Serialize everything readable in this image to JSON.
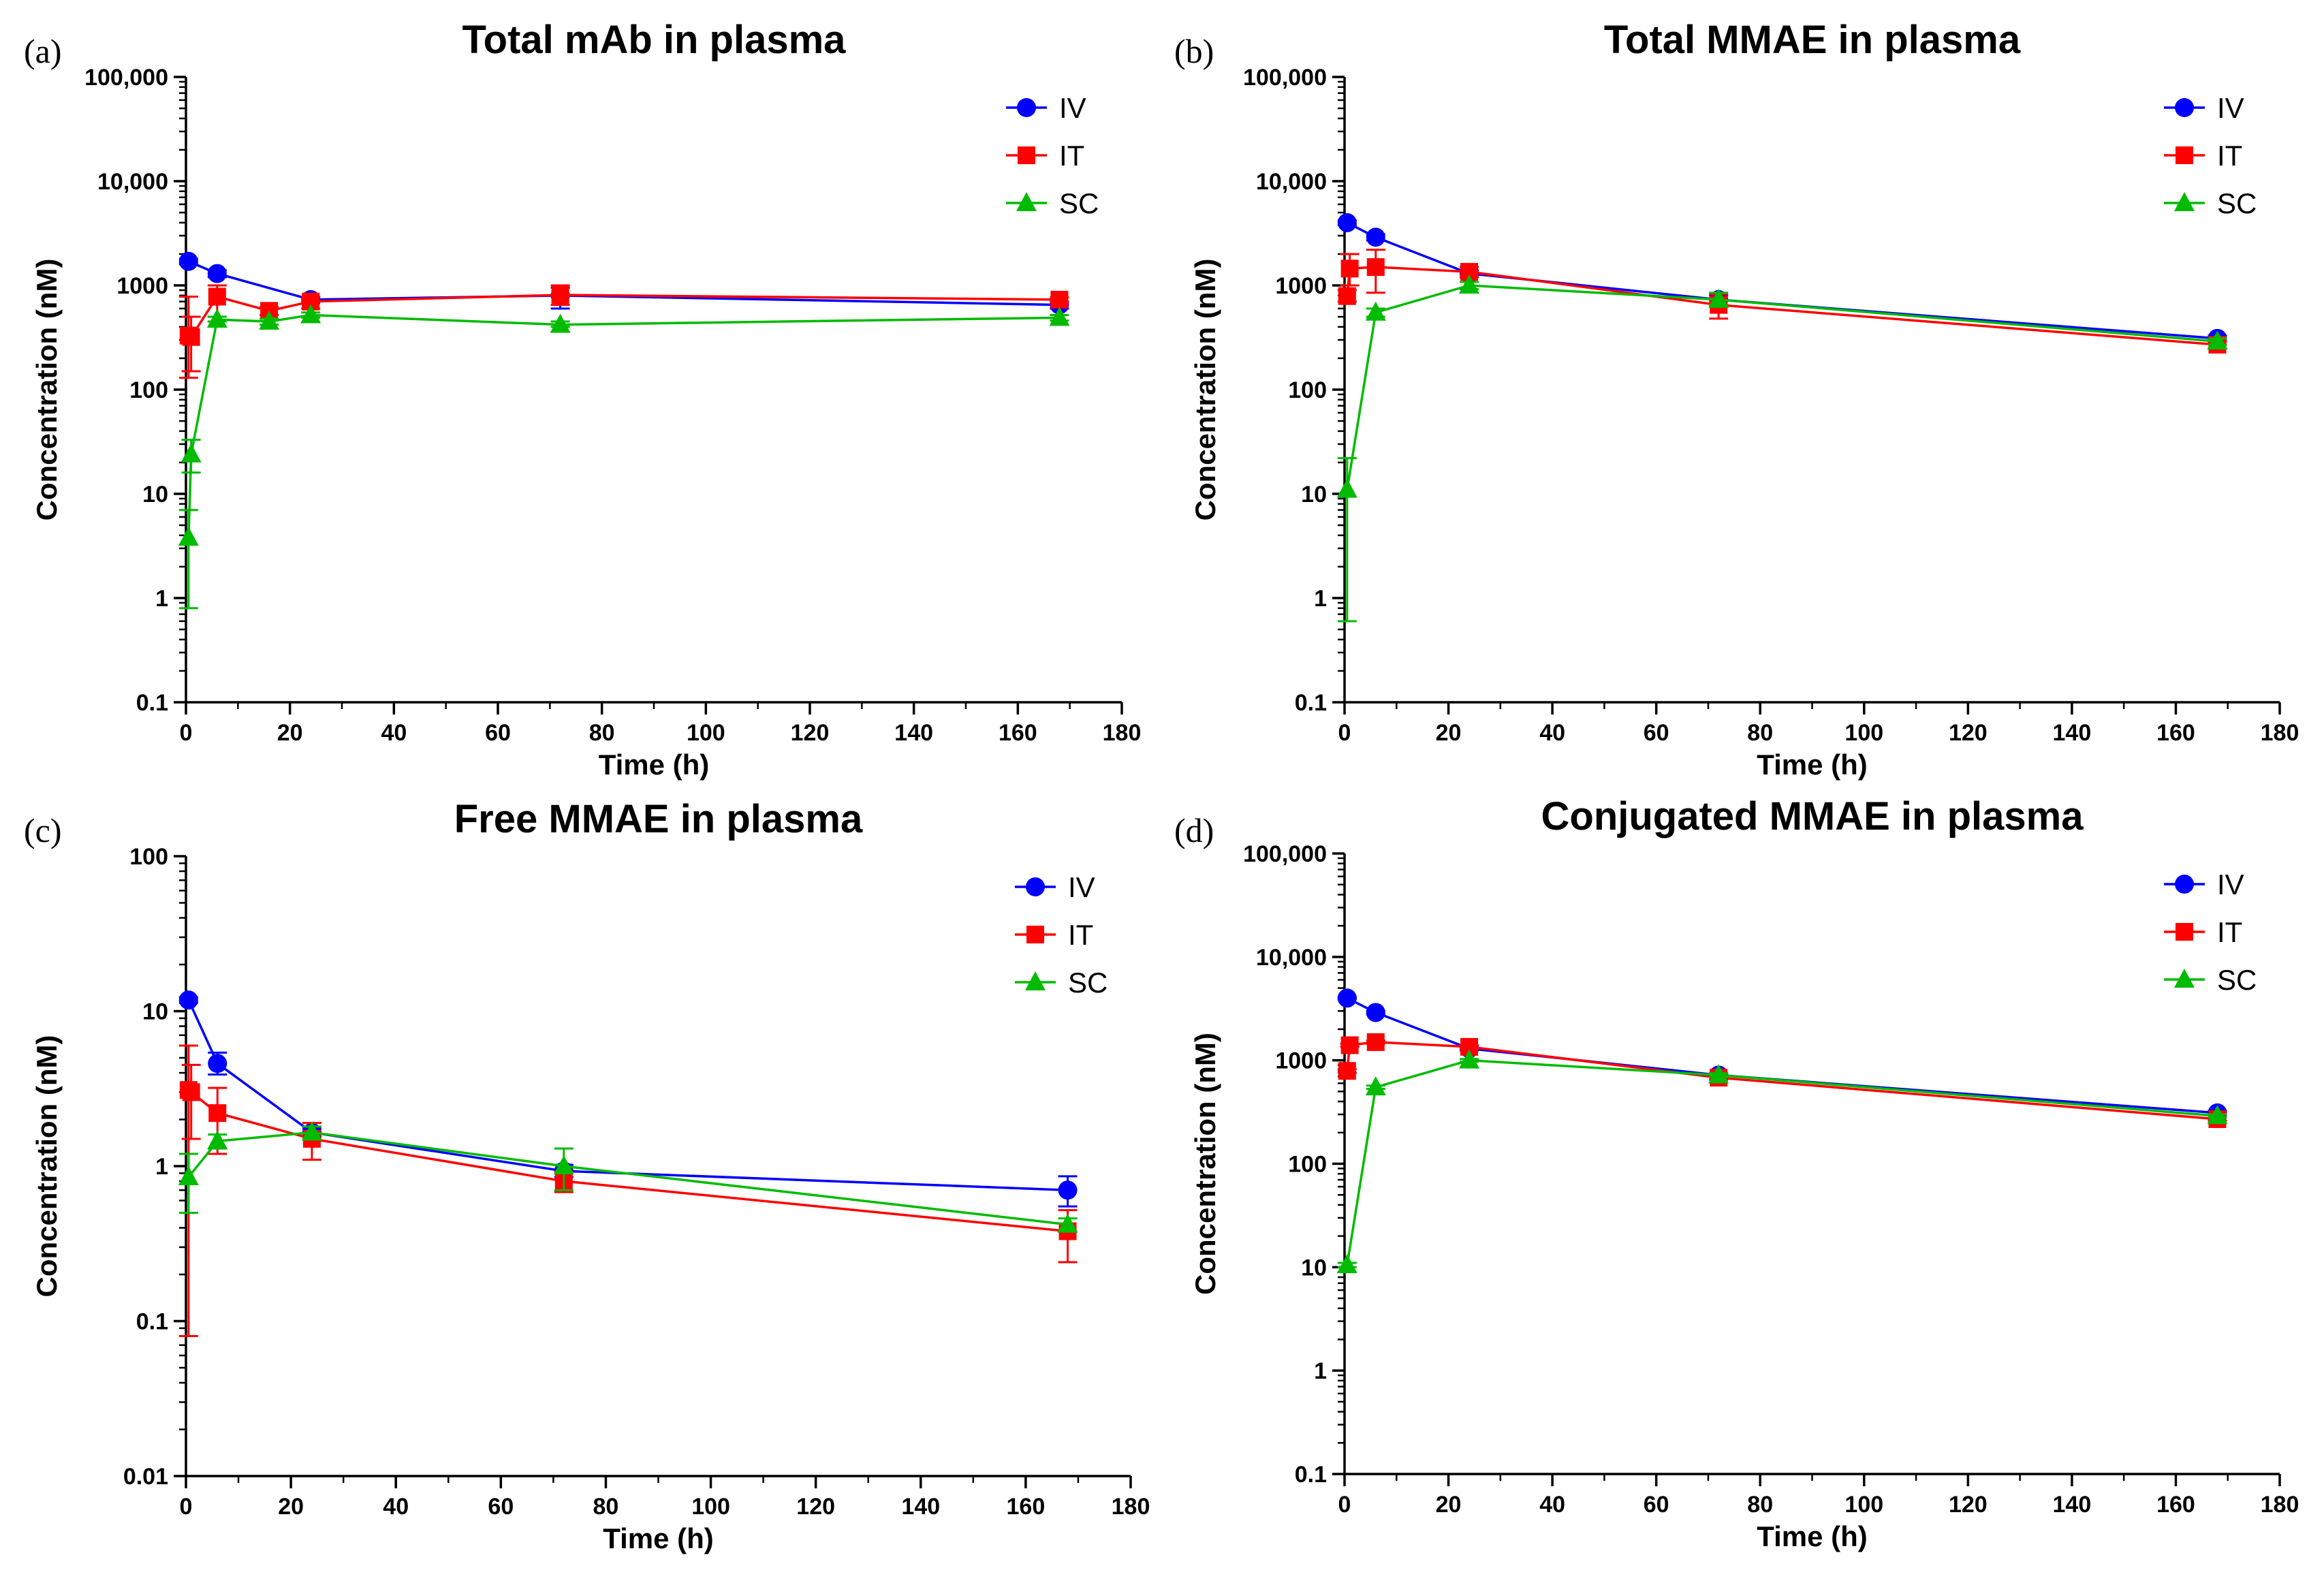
{
  "colors": {
    "IV": "#0000ff",
    "IT": "#ff0000",
    "SC": "#00bb00"
  },
  "chart_data": [
    {
      "type": "line",
      "panel": "(a)",
      "title": "Total mAb in plasma",
      "xlabel": "Time (h)",
      "ylabel": "Concentration (nM)",
      "xlim": [
        0,
        180
      ],
      "x_ticks": [
        "0",
        "20",
        "40",
        "60",
        "80",
        "100",
        "120",
        "140",
        "160",
        "180"
      ],
      "y_scale": "log",
      "ylim": [
        0.1,
        100000
      ],
      "y_ticks": [
        "0.1",
        "1",
        "10",
        "100",
        "1000",
        "10,000",
        "100,000"
      ],
      "legend_position": "top-right",
      "series": [
        {
          "name": "IV",
          "marker": "circle",
          "x": [
            0.5,
            6,
            24,
            72,
            168
          ],
          "values": [
            1700,
            1300,
            730,
            800,
            650
          ],
          "err_low": [
            1600,
            1200,
            680,
            600,
            600
          ],
          "err_high": [
            1800,
            1400,
            780,
            950,
            700
          ]
        },
        {
          "name": "IT",
          "marker": "square",
          "x": [
            0.5,
            1,
            6,
            16,
            24,
            72,
            168
          ],
          "values": [
            330,
            320,
            780,
            570,
            700,
            810,
            730
          ],
          "err_low": [
            130,
            150,
            500,
            520,
            600,
            650,
            690
          ],
          "err_high": [
            780,
            500,
            1000,
            620,
            780,
            1000,
            770
          ]
        },
        {
          "name": "SC",
          "marker": "triangle",
          "x": [
            0.5,
            1,
            6,
            16,
            24,
            72,
            168
          ],
          "values": [
            3.8,
            24,
            470,
            450,
            520,
            420,
            490
          ],
          "err_low": [
            0.8,
            16,
            450,
            420,
            490,
            400,
            460
          ],
          "err_high": [
            7,
            33,
            500,
            480,
            550,
            450,
            520
          ]
        }
      ]
    },
    {
      "type": "line",
      "panel": "(b)",
      "title": "Total MMAE in plasma",
      "xlabel": "Time (h)",
      "ylabel": "Concentration (nM)",
      "xlim": [
        0,
        180
      ],
      "x_ticks": [
        "0",
        "20",
        "40",
        "60",
        "80",
        "100",
        "120",
        "140",
        "160",
        "180"
      ],
      "y_scale": "log",
      "ylim": [
        0.1,
        100000
      ],
      "y_ticks": [
        "0.1",
        "1",
        "10",
        "100",
        "1000",
        "10,000",
        "100,000"
      ],
      "legend_position": "top-right",
      "series": [
        {
          "name": "IV",
          "marker": "circle",
          "x": [
            0.5,
            6,
            24,
            72,
            168
          ],
          "values": [
            4000,
            2900,
            1300,
            730,
            310
          ],
          "err_low": [
            3800,
            2700,
            1200,
            650,
            290
          ],
          "err_high": [
            4200,
            3100,
            1400,
            800,
            330
          ]
        },
        {
          "name": "IT",
          "marker": "square",
          "x": [
            0.5,
            1,
            6,
            24,
            72,
            168
          ],
          "values": [
            790,
            1450,
            1500,
            1350,
            650,
            270
          ],
          "err_low": [
            700,
            1000,
            850,
            1200,
            480,
            250
          ],
          "err_high": [
            900,
            2000,
            2200,
            1500,
            820,
            290
          ]
        },
        {
          "name": "SC",
          "marker": "triangle",
          "x": [
            0.5,
            6,
            24,
            72,
            168
          ],
          "values": [
            11,
            550,
            1000,
            730,
            290
          ],
          "err_low": [
            0.6,
            500,
            920,
            650,
            270
          ],
          "err_high": [
            22,
            600,
            1080,
            850,
            310
          ]
        }
      ]
    },
    {
      "type": "line",
      "panel": "(c)",
      "title": "Free MMAE in plasma",
      "xlabel": "Time (h)",
      "ylabel": "Concentration (nM)",
      "xlim": [
        0,
        180
      ],
      "x_ticks": [
        "0",
        "20",
        "40",
        "60",
        "80",
        "100",
        "120",
        "140",
        "160",
        "180"
      ],
      "y_scale": "log",
      "ylim": [
        0.01,
        100
      ],
      "y_ticks": [
        "0.01",
        "0.1",
        "1",
        "10",
        "100"
      ],
      "legend_position": "top-right",
      "series": [
        {
          "name": "IV",
          "marker": "circle",
          "x": [
            0.5,
            6,
            24,
            72,
            168
          ],
          "values": [
            11.8,
            4.6,
            1.65,
            0.93,
            0.7
          ],
          "err_low": [
            11.3,
            3.9,
            1.55,
            0.85,
            0.55
          ],
          "err_high": [
            12.3,
            5.4,
            1.75,
            1.02,
            0.86
          ]
        },
        {
          "name": "IT",
          "marker": "square",
          "x": [
            0.5,
            1,
            6,
            24,
            72,
            168
          ],
          "values": [
            3.1,
            3.0,
            2.2,
            1.5,
            0.8,
            0.38
          ],
          "err_low": [
            0.08,
            1.5,
            1.2,
            1.1,
            0.68,
            0.24
          ],
          "err_high": [
            6.0,
            4.5,
            3.2,
            1.9,
            0.92,
            0.52
          ]
        },
        {
          "name": "SC",
          "marker": "triangle",
          "x": [
            0.5,
            6,
            24,
            72,
            168
          ],
          "values": [
            0.85,
            1.45,
            1.65,
            1.0,
            0.42
          ],
          "err_low": [
            0.5,
            1.3,
            1.5,
            0.7,
            0.38
          ],
          "err_high": [
            1.2,
            1.6,
            1.8,
            1.3,
            0.46
          ]
        }
      ]
    },
    {
      "type": "line",
      "panel": "(d)",
      "title": "Conjugated MMAE in plasma",
      "xlabel": "Time (h)",
      "ylabel": "Concentration (nM)",
      "xlim": [
        0,
        180
      ],
      "x_ticks": [
        "0",
        "20",
        "40",
        "60",
        "80",
        "100",
        "120",
        "140",
        "160",
        "180"
      ],
      "y_scale": "log",
      "ylim": [
        0.1,
        100000
      ],
      "y_ticks": [
        "0.1",
        "1",
        "10",
        "100",
        "1000",
        "10,000",
        "100,000"
      ],
      "legend_position": "top-right",
      "series": [
        {
          "name": "IV",
          "marker": "circle",
          "x": [
            0.5,
            6,
            24,
            72,
            168
          ],
          "values": [
            4000,
            2900,
            1300,
            720,
            310
          ],
          "err_low": [
            3900,
            2800,
            1250,
            690,
            295
          ],
          "err_high": [
            4100,
            3000,
            1350,
            750,
            325
          ]
        },
        {
          "name": "IT",
          "marker": "square",
          "x": [
            0.5,
            1,
            6,
            24,
            72,
            168
          ],
          "values": [
            790,
            1400,
            1500,
            1350,
            680,
            270
          ],
          "err_low": [
            760,
            1350,
            1450,
            1300,
            650,
            260
          ],
          "err_high": [
            820,
            1450,
            1550,
            1400,
            710,
            280
          ]
        },
        {
          "name": "SC",
          "marker": "triangle",
          "x": [
            0.5,
            6,
            24,
            72,
            168
          ],
          "values": [
            10.5,
            550,
            1000,
            720,
            290
          ],
          "err_low": [
            10,
            530,
            970,
            690,
            280
          ],
          "err_high": [
            11,
            570,
            1030,
            750,
            300
          ]
        }
      ]
    }
  ]
}
